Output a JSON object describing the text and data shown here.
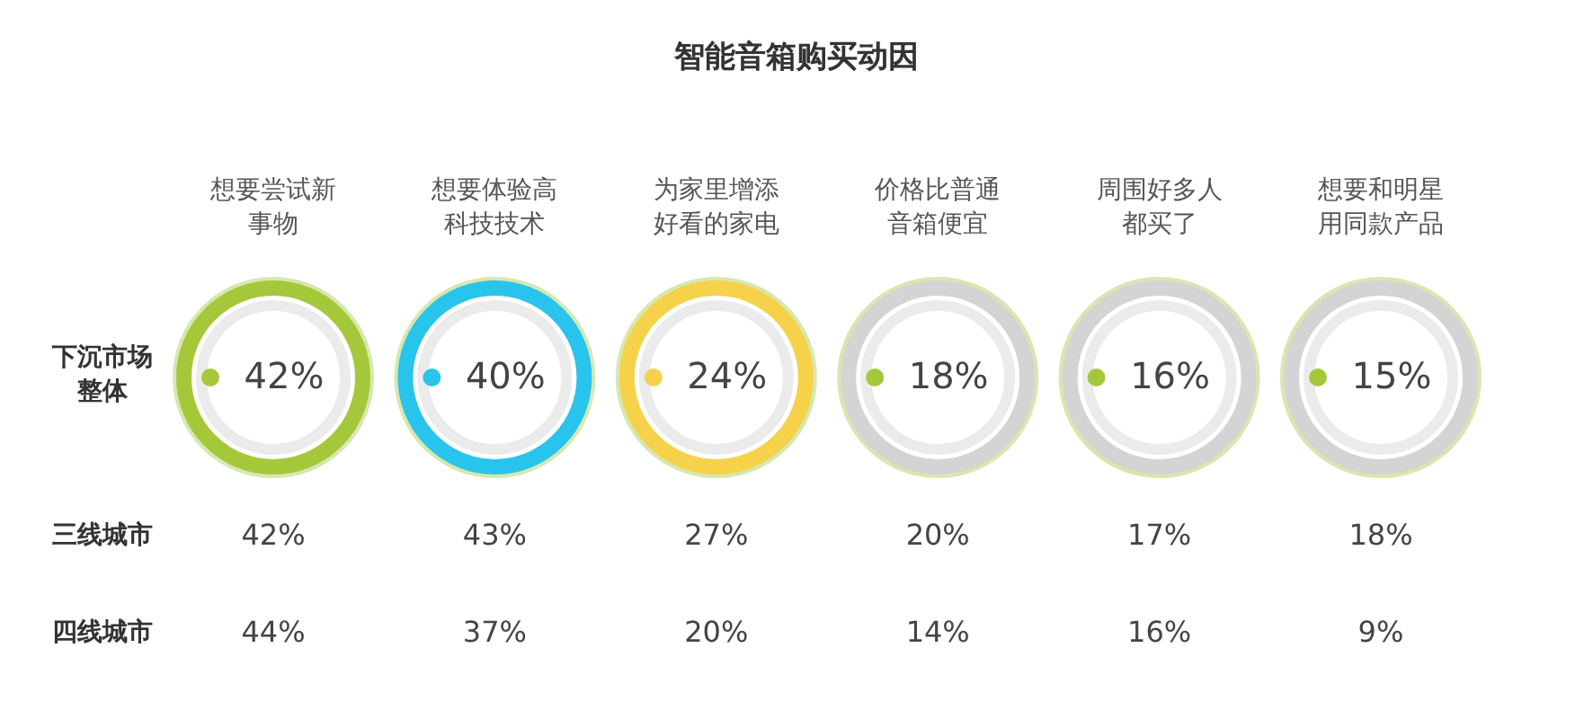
{
  "chart_data": {
    "type": "other",
    "title": "智能音箱购买动因",
    "categories": [
      "想要尝试新事物",
      "想要体验高科技技术",
      "为家里增添好看的家电",
      "价格比普通音箱便宜",
      "周围好多人都买了",
      "想要和明星用同款产品"
    ],
    "colors": [
      "#a5c83a",
      "#29c4ec",
      "#f5d24a",
      "#d4d4d4",
      "#d4d4d4",
      "#d4d4d4"
    ],
    "series": [
      {
        "name": "下沉市场整体",
        "values": [
          42,
          40,
          24,
          18,
          16,
          15
        ],
        "value_labels": [
          "42%",
          "40%",
          "24%",
          "18%",
          "16%",
          "15%"
        ]
      },
      {
        "name": "三线城市",
        "values": [
          42,
          43,
          27,
          20,
          17,
          18
        ],
        "value_labels": [
          "42%",
          "43%",
          "27%",
          "20%",
          "17%",
          "18%"
        ]
      },
      {
        "name": "四线城市",
        "values": [
          44,
          37,
          20,
          14,
          16,
          9
        ],
        "value_labels": [
          "44%",
          "37%",
          "20%",
          "14%",
          "16%",
          "9%"
        ]
      }
    ]
  }
}
